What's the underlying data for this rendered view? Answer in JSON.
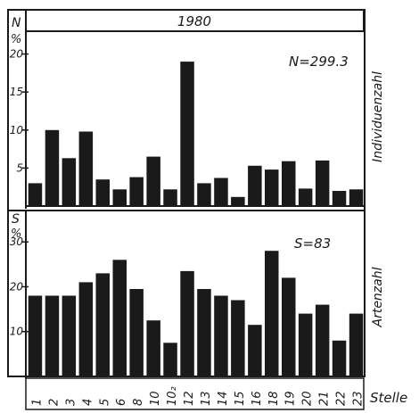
{
  "chart_data": [
    {
      "type": "bar",
      "title": "1980",
      "ylabel": "N %",
      "side_label": "Individuenzahl",
      "annotation": "N=299.3",
      "yticks": [
        "5",
        "10",
        "15",
        "20"
      ],
      "ylim": [
        0,
        23
      ],
      "categories": [
        "1",
        "2",
        "3",
        "4",
        "5",
        "6",
        "8",
        "10",
        "10₂",
        "12",
        "13",
        "14",
        "15",
        "16",
        "18",
        "19",
        "20",
        "21",
        "22",
        "23"
      ],
      "values": [
        3.0,
        10.0,
        6.3,
        9.8,
        3.5,
        2.2,
        3.8,
        6.5,
        2.2,
        19.0,
        3.0,
        3.7,
        1.2,
        5.3,
        4.8,
        5.9,
        2.3,
        6.0,
        2.0,
        2.2
      ]
    },
    {
      "type": "bar",
      "ylabel": "S %",
      "side_label": "Artenzahl",
      "annotation": "S=83",
      "yticks": [
        "10",
        "20",
        "30"
      ],
      "ylim": [
        0,
        37
      ],
      "xlabel": "Stelle",
      "categories": [
        "1",
        "2",
        "3",
        "4",
        "5",
        "6",
        "8",
        "10",
        "10₂",
        "12",
        "13",
        "14",
        "15",
        "16",
        "18",
        "19",
        "20",
        "21",
        "22",
        "23"
      ],
      "values": [
        18,
        18,
        18,
        21,
        23,
        26,
        19.5,
        12.5,
        7.5,
        23.5,
        19.5,
        18,
        17,
        11.5,
        28,
        22,
        14,
        16,
        8,
        14
      ]
    }
  ],
  "colors": {
    "ink": "#1a1a1a",
    "paper": "#ffffff"
  }
}
